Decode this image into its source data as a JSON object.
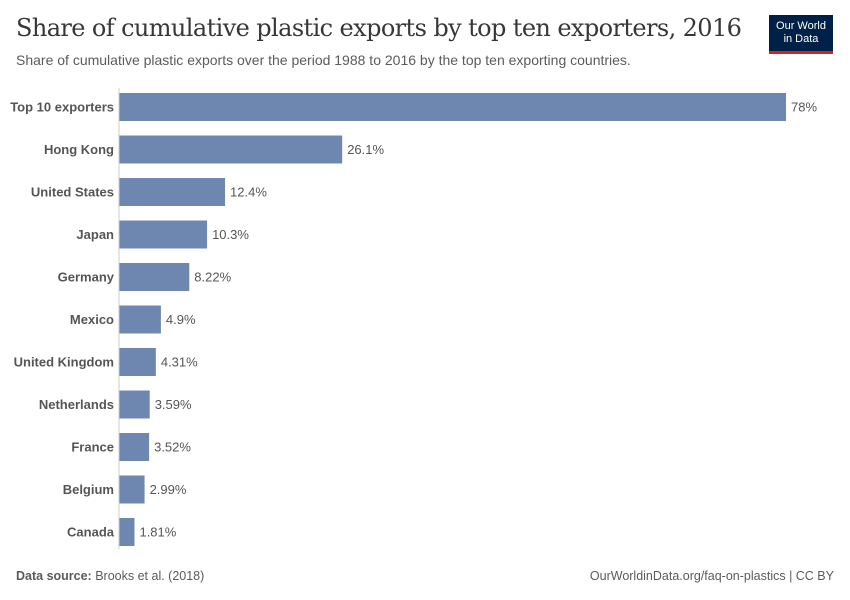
{
  "header": {
    "title": "Share of cumulative plastic exports by top ten exporters, 2016",
    "subtitle": "Share of cumulative plastic exports over the period 1988 to 2016 by the top ten exporting countries.",
    "logo_line1": "Our World",
    "logo_line2": "in Data"
  },
  "footer": {
    "source_label": "Data source:",
    "source": "Brooks et al. (2018)",
    "url": "OurWorldinData.org/faq-on-plastics | CC BY"
  },
  "colors": {
    "bar": "#6d87b0",
    "logo_bg": "#002147",
    "logo_accent": "#ce261e"
  },
  "chart_data": {
    "type": "bar",
    "orientation": "horizontal",
    "categories": [
      "Top 10 exporters",
      "Hong Kong",
      "United States",
      "Japan",
      "Germany",
      "Mexico",
      "United Kingdom",
      "Netherlands",
      "France",
      "Belgium",
      "Canada"
    ],
    "values": [
      78,
      26.1,
      12.4,
      10.3,
      8.22,
      4.9,
      4.31,
      3.59,
      3.52,
      2.99,
      1.81
    ],
    "value_labels": [
      "78%",
      "26.1%",
      "12.4%",
      "10.3%",
      "8.22%",
      "4.9%",
      "4.31%",
      "3.59%",
      "3.52%",
      "2.99%",
      "1.81%"
    ],
    "unit": "%",
    "xlim": [
      0,
      78
    ],
    "grid": false
  }
}
